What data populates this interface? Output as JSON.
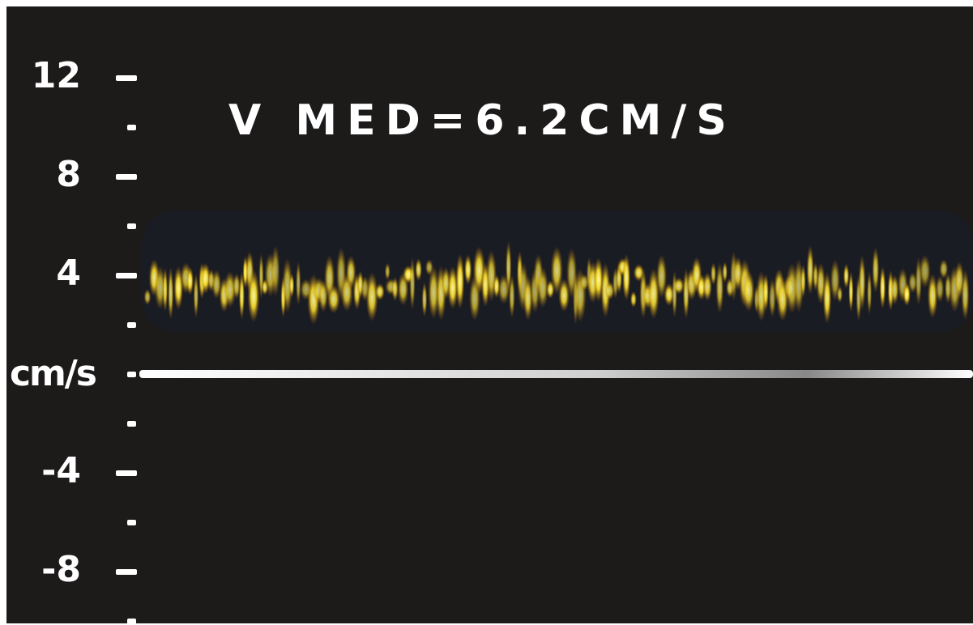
{
  "scale": {
    "labeled_ticks": [
      12,
      8,
      4,
      -4,
      -8
    ],
    "minor_ticks": [
      10,
      6,
      2,
      -2,
      -6,
      -10
    ],
    "zero": 0,
    "unit": "cm/s"
  },
  "measurement": "V MED=6.2CM/S"
}
